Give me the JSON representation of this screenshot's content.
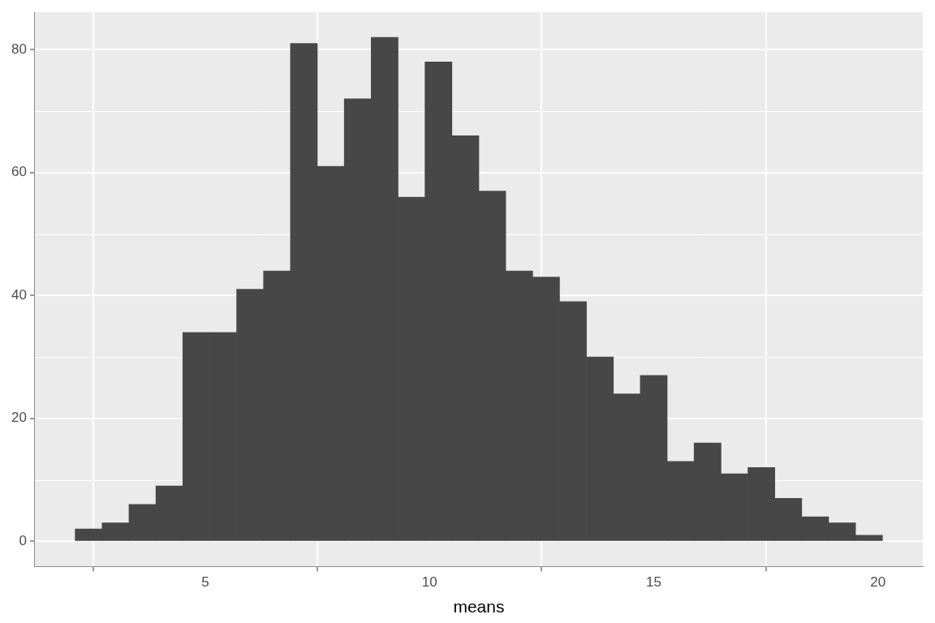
{
  "chart_data": {
    "type": "histogram",
    "x_label": "means",
    "bins": [
      2.1,
      2.7,
      3.3,
      3.9,
      4.5,
      5.1,
      5.7,
      6.3,
      6.9,
      7.5,
      8.1,
      8.7,
      9.3,
      9.9,
      10.5,
      11.1,
      11.7,
      12.3,
      12.9,
      13.5,
      14.1,
      14.7,
      15.3,
      15.9,
      16.5,
      17.1,
      17.7,
      18.3,
      18.9,
      19.5,
      20.1
    ],
    "values": [
      2,
      3,
      6,
      9,
      34,
      34,
      41,
      44,
      81,
      61,
      72,
      82,
      56,
      78,
      66,
      57,
      44,
      43,
      39,
      30,
      24,
      27,
      13,
      16,
      11,
      12,
      7,
      4,
      3,
      1
    ],
    "color": "#474747",
    "xlim": [
      1.2,
      21.0
    ],
    "xticks": [
      5,
      10,
      15,
      20
    ],
    "ylim": [
      -4.1,
      86.1
    ],
    "yticks": [
      0,
      20,
      40,
      60,
      80
    ],
    "grid": true
  }
}
